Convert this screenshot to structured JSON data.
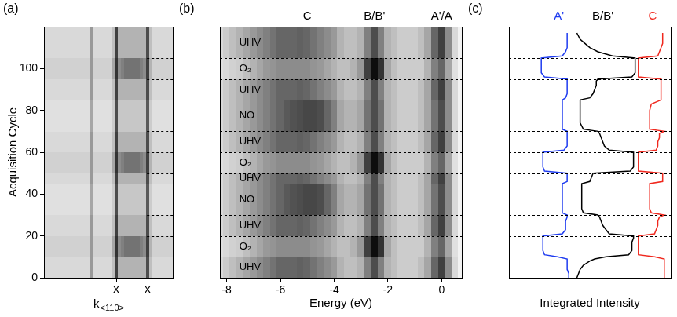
{
  "regions": [
    {
      "label": "UHV",
      "from": 0,
      "to": 10
    },
    {
      "label": "O₂",
      "from": 10,
      "to": 20
    },
    {
      "label": "UHV",
      "from": 20,
      "to": 30
    },
    {
      "label": "NO",
      "from": 30,
      "to": 45
    },
    {
      "label": "UHV",
      "from": 45,
      "to": 50
    },
    {
      "label": "O₂",
      "from": 50,
      "to": 60
    },
    {
      "label": "UHV",
      "from": 60,
      "to": 70
    },
    {
      "label": "NO",
      "from": 70,
      "to": 85
    },
    {
      "label": "UHV",
      "from": 85,
      "to": 95
    },
    {
      "label": "O₂",
      "from": 95,
      "to": 105
    },
    {
      "label": "UHV",
      "from": 105,
      "to": 120
    }
  ],
  "chart_data": [
    {
      "type": "heatmap",
      "panel": "(a)",
      "y_label": "Acquisition Cycle",
      "x_label": {
        "text": "k",
        "subscript": "<110>"
      },
      "xlim": [
        -1.3,
        2.8
      ],
      "xticks": [
        {
          "value": 1,
          "label": "X"
        },
        {
          "value": 2,
          "label": "X"
        }
      ],
      "ylim": [
        0,
        120
      ],
      "yticks": [
        0,
        20,
        40,
        60,
        80,
        100
      ],
      "x": [
        -1.3,
        -1.2,
        -1.1,
        -1.0,
        -0.9,
        -0.8,
        -0.7,
        -0.6,
        -0.5,
        -0.4,
        -0.3,
        -0.2,
        -0.1,
        0,
        0.1,
        0.2,
        0.3,
        0.4,
        0.5,
        0.6,
        0.7,
        0.8,
        0.9,
        1,
        1.1,
        1.2,
        1.3,
        1.4,
        1.5,
        1.6,
        1.7,
        1.8,
        1.9,
        2,
        2.1,
        2.2,
        2.3,
        2.4,
        2.5,
        2.6,
        2.7,
        2.8
      ],
      "profiles": {
        "UHV": [
          0.15,
          0.15,
          0.15,
          0.15,
          0.15,
          0.15,
          0.15,
          0.15,
          0.15,
          0.15,
          0.15,
          0.15,
          0.15,
          0.15,
          0.15,
          0.4,
          0.15,
          0.15,
          0.15,
          0.15,
          0.15,
          0.15,
          0.25,
          0.75,
          0.3,
          0.3,
          0.3,
          0.3,
          0.3,
          0.3,
          0.3,
          0.3,
          0.3,
          0.7,
          0.25,
          0.15,
          0.15,
          0.15,
          0.15,
          0.15,
          0.15,
          0.15
        ],
        "O₂": [
          0.18,
          0.18,
          0.18,
          0.18,
          0.18,
          0.18,
          0.18,
          0.18,
          0.18,
          0.18,
          0.18,
          0.18,
          0.18,
          0.18,
          0.18,
          0.4,
          0.18,
          0.18,
          0.18,
          0.18,
          0.18,
          0.18,
          0.35,
          0.8,
          0.45,
          0.5,
          0.55,
          0.55,
          0.55,
          0.55,
          0.55,
          0.5,
          0.45,
          0.75,
          0.3,
          0.18,
          0.18,
          0.18,
          0.18,
          0.18,
          0.18,
          0.18
        ],
        "NO": [
          0.12,
          0.12,
          0.12,
          0.12,
          0.12,
          0.12,
          0.12,
          0.12,
          0.12,
          0.12,
          0.12,
          0.12,
          0.12,
          0.12,
          0.12,
          0.35,
          0.12,
          0.12,
          0.12,
          0.12,
          0.12,
          0.12,
          0.2,
          0.7,
          0.22,
          0.22,
          0.22,
          0.22,
          0.22,
          0.22,
          0.22,
          0.22,
          0.22,
          0.65,
          0.2,
          0.12,
          0.12,
          0.12,
          0.12,
          0.12,
          0.12,
          0.12
        ]
      }
    },
    {
      "type": "heatmap",
      "panel": "(b)",
      "x_label": "Energy (eV)",
      "xlim": [
        -8.25,
        0.75
      ],
      "xticks": [
        -8,
        -6,
        -4,
        -2,
        0
      ],
      "ylim": [
        0,
        120
      ],
      "tick_labels": "x",
      "annotations": [
        {
          "text": "C",
          "x": -5
        },
        {
          "text": "B/B'",
          "x": -2.5
        },
        {
          "text": "A'/A",
          "x": 0
        }
      ],
      "x": [
        -8.25,
        -8,
        -7.75,
        -7.5,
        -7.25,
        -7,
        -6.75,
        -6.5,
        -6.25,
        -6,
        -5.75,
        -5.5,
        -5.25,
        -5,
        -4.75,
        -4.5,
        -4.25,
        -4,
        -3.75,
        -3.5,
        -3.25,
        -3,
        -2.75,
        -2.5,
        -2.25,
        -2,
        -1.75,
        -1.5,
        -1.25,
        -1,
        -0.75,
        -0.5,
        -0.25,
        0,
        0.25,
        0.5,
        0.75
      ],
      "profiles": {
        "UHV": [
          0.15,
          0.2,
          0.25,
          0.3,
          0.35,
          0.4,
          0.45,
          0.5,
          0.55,
          0.6,
          0.6,
          0.6,
          0.62,
          0.6,
          0.55,
          0.5,
          0.45,
          0.4,
          0.3,
          0.25,
          0.25,
          0.3,
          0.5,
          0.7,
          0.5,
          0.3,
          0.25,
          0.2,
          0.2,
          0.2,
          0.25,
          0.35,
          0.6,
          0.75,
          0.45,
          0.15,
          0.05
        ],
        "O₂": [
          0.12,
          0.15,
          0.18,
          0.2,
          0.25,
          0.3,
          0.35,
          0.4,
          0.42,
          0.45,
          0.45,
          0.45,
          0.45,
          0.45,
          0.42,
          0.4,
          0.35,
          0.3,
          0.25,
          0.25,
          0.3,
          0.4,
          0.75,
          0.95,
          0.8,
          0.35,
          0.25,
          0.2,
          0.2,
          0.2,
          0.2,
          0.3,
          0.5,
          0.6,
          0.35,
          0.12,
          0.05
        ],
        "NO": [
          0.15,
          0.2,
          0.25,
          0.3,
          0.35,
          0.4,
          0.45,
          0.5,
          0.55,
          0.6,
          0.65,
          0.68,
          0.7,
          0.72,
          0.72,
          0.7,
          0.6,
          0.5,
          0.35,
          0.3,
          0.3,
          0.35,
          0.55,
          0.7,
          0.55,
          0.3,
          0.25,
          0.2,
          0.2,
          0.2,
          0.25,
          0.35,
          0.55,
          0.7,
          0.45,
          0.15,
          0.05
        ]
      }
    },
    {
      "type": "line",
      "panel": "(c)",
      "x_label": "Integrated Intensity",
      "tick_labels": false,
      "xlim": [
        0,
        100
      ],
      "ylim": [
        0,
        120
      ],
      "y": [
        0,
        2,
        4,
        6,
        8,
        9,
        10,
        11,
        13,
        15,
        17,
        19,
        20,
        21,
        23,
        25,
        27,
        29,
        30,
        31,
        33,
        36,
        39,
        42,
        44,
        45,
        46,
        48,
        50,
        51,
        53,
        55,
        57,
        59,
        60,
        61,
        63,
        65,
        67,
        69,
        70,
        71,
        74,
        77,
        80,
        83,
        85,
        86,
        88,
        90,
        92,
        94,
        95,
        96,
        98,
        100,
        102,
        104,
        105,
        106,
        108,
        110,
        112,
        114,
        117
      ],
      "series": [
        {
          "name": "A'",
          "color": "#1f3cf0",
          "values": [
            37,
            37,
            36,
            36,
            36,
            36,
            30,
            22,
            21,
            21,
            21,
            21,
            21,
            33,
            35,
            35,
            35,
            36,
            36,
            33,
            33,
            33,
            33,
            33,
            33,
            33,
            36,
            36,
            36,
            22,
            21,
            21,
            21,
            21,
            21,
            34,
            36,
            36,
            36,
            36,
            36,
            33,
            33,
            33,
            33,
            33,
            33,
            35,
            36,
            36,
            36,
            36,
            36,
            22,
            20,
            20,
            20,
            20,
            20,
            33,
            35,
            36,
            36,
            36,
            36
          ]
        },
        {
          "name": "B/B'",
          "color": "#000000",
          "values": [
            42,
            43,
            44,
            46,
            50,
            53,
            60,
            74,
            76,
            76,
            76,
            77,
            77,
            62,
            60,
            58,
            57,
            56,
            55,
            46,
            45,
            45,
            45,
            45,
            45,
            45,
            50,
            51,
            52,
            75,
            77,
            77,
            77,
            77,
            77,
            62,
            59,
            58,
            57,
            56,
            55,
            46,
            44,
            44,
            44,
            44,
            44,
            50,
            52,
            53,
            54,
            54,
            55,
            76,
            78,
            78,
            78,
            78,
            78,
            64,
            55,
            50,
            47,
            44,
            42
          ]
        },
        {
          "name": "C",
          "color": "#f0281e",
          "values": [
            96,
            96,
            96,
            96,
            96,
            96,
            90,
            80,
            80,
            80,
            80,
            80,
            80,
            90,
            91,
            92,
            92,
            93,
            96,
            88,
            87,
            87,
            87,
            87,
            87,
            87,
            95,
            95,
            95,
            80,
            80,
            80,
            80,
            80,
            80,
            91,
            92,
            92,
            93,
            93,
            96,
            87,
            87,
            87,
            87,
            88,
            94,
            94,
            94,
            94,
            94,
            94,
            94,
            80,
            80,
            80,
            80,
            80,
            80,
            92,
            93,
            94,
            95,
            95,
            95
          ]
        }
      ]
    }
  ]
}
